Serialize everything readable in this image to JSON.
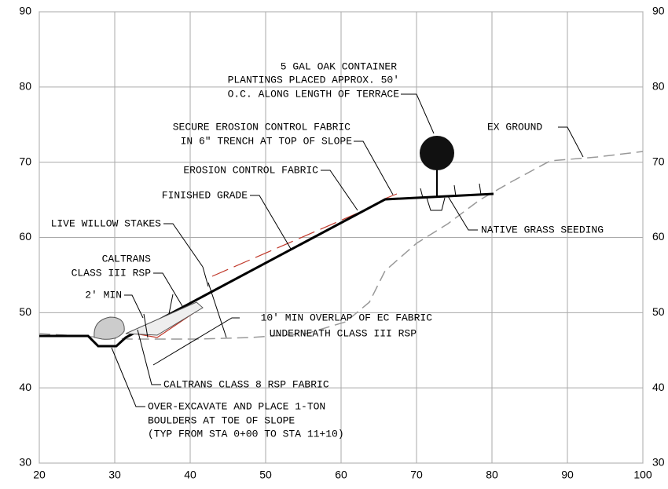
{
  "axes": {
    "xticks": [
      20,
      30,
      40,
      50,
      60,
      70,
      80,
      90,
      100
    ],
    "yticks": [
      30,
      40,
      50,
      60,
      70,
      80,
      90
    ]
  },
  "annotations": {
    "oak": [
      "5 GAL OAK CONTAINER",
      "PLANTINGS PLACED APPROX. 50'",
      "O.C. ALONG LENGTH OF TERRACE"
    ],
    "ex_ground": "EX GROUND",
    "secure_fabric": [
      "SECURE EROSION CONTROL FABRIC",
      "IN 6\" TRENCH AT TOP OF SLOPE"
    ],
    "erosion_fabric": "EROSION CONTROL FABRIC",
    "finished_grade": "FINISHED GRADE",
    "willow": "LIVE WILLOW STAKES",
    "grass": "NATIVE GRASS SEEDING",
    "rsp": [
      "CALTRANS",
      "CLASS III RSP"
    ],
    "min2": "2' MIN",
    "overlap": [
      "10' MIN OVERLAP OF EC FABRIC",
      "UNDERNEATH CLASS III RSP"
    ],
    "rsp_fabric": "CALTRANS CLASS 8 RSP FABRIC",
    "boulders": [
      "OVER-EXCAVATE AND PLACE 1-TON",
      "BOULDERS AT TOE OF SLOPE",
      "(TYP FROM STA 0+00 TO STA 11+10)"
    ]
  }
}
